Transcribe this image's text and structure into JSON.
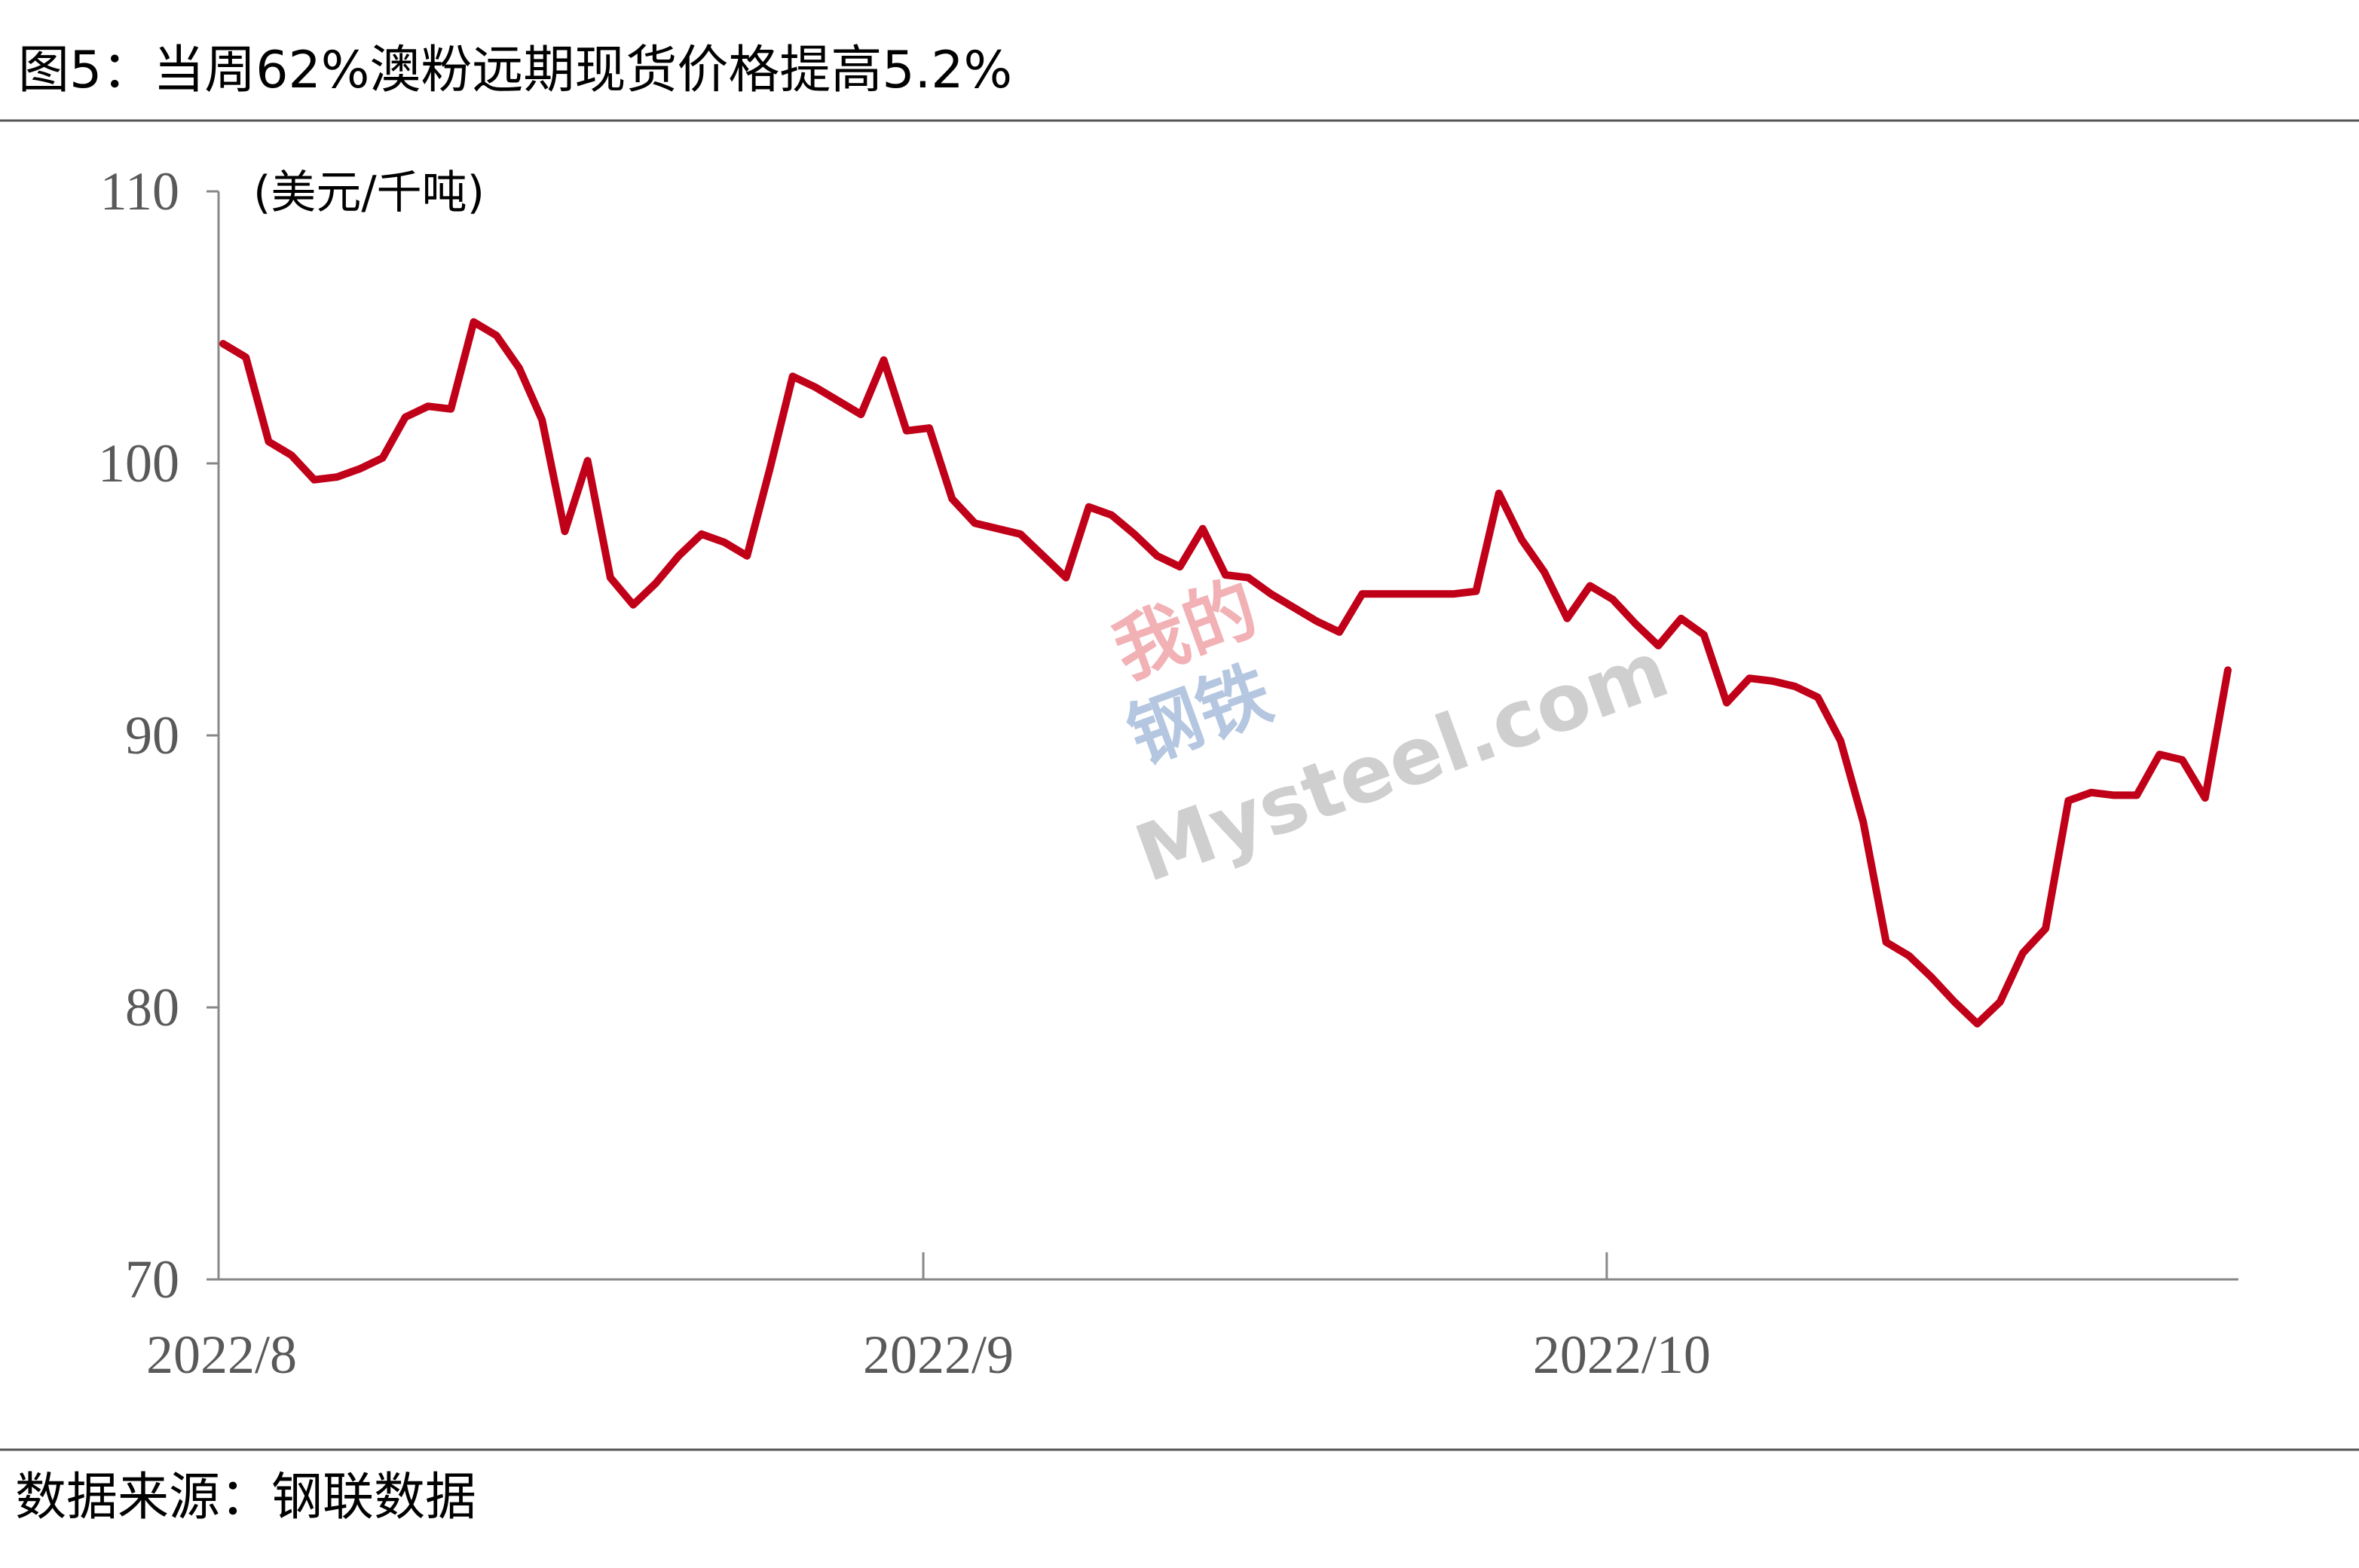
{
  "chart_data": {
    "type": "line",
    "title": "图5：当周62%澳粉远期现货价格提高5.2%",
    "y_label": "(美元/千吨)",
    "source": "数据来源：钢联数据",
    "watermark": [
      "我的",
      "钢铁",
      "Mysteel.com"
    ],
    "categories": [
      "2022/8",
      null,
      null,
      null,
      null,
      null,
      null,
      null,
      null,
      null,
      null,
      null,
      null,
      null,
      null,
      null,
      null,
      null,
      null,
      null,
      null,
      null,
      null,
      null,
      null,
      null,
      null,
      null,
      null,
      null,
      null,
      "2022/9",
      null,
      null,
      null,
      null,
      null,
      null,
      null,
      null,
      null,
      null,
      null,
      null,
      null,
      null,
      null,
      null,
      null,
      null,
      null,
      null,
      null,
      null,
      null,
      null,
      null,
      null,
      null,
      null,
      null,
      "2022/10",
      null,
      null,
      null,
      null,
      null,
      null,
      null,
      null,
      null,
      null,
      null,
      null,
      null,
      null,
      null,
      null,
      null,
      null,
      null,
      null,
      null,
      null,
      null,
      null,
      null,
      null,
      null
    ],
    "series": [
      {
        "name": "62%澳粉远期现货价格",
        "color": "#c00018",
        "values": [
          104.4,
          103.9,
          100.8,
          100.3,
          99.4,
          99.5,
          99.8,
          100.2,
          101.7,
          102.1,
          102.0,
          105.2,
          104.7,
          103.5,
          101.6,
          97.5,
          100.1,
          95.8,
          94.8,
          95.6,
          96.6,
          97.4,
          97.1,
          96.6,
          99.8,
          103.2,
          102.8,
          102.3,
          101.8,
          103.8,
          101.2,
          101.3,
          98.7,
          97.8,
          97.6,
          97.4,
          96.6,
          95.8,
          98.4,
          98.1,
          97.4,
          96.6,
          96.2,
          97.6,
          95.9,
          95.8,
          95.2,
          94.7,
          94.2,
          93.8,
          95.2,
          95.2,
          95.2,
          95.2,
          95.2,
          95.3,
          98.9,
          97.2,
          96.0,
          94.3,
          95.5,
          95.0,
          94.1,
          93.3,
          94.3,
          93.7,
          91.2,
          92.1,
          92.0,
          91.8,
          91.4,
          89.8,
          86.8,
          82.4,
          81.9,
          81.1,
          80.2,
          79.4,
          80.2,
          82.0,
          82.9,
          87.6,
          87.9,
          87.8,
          87.8,
          89.3,
          89.1,
          87.7,
          92.4
        ]
      }
    ],
    "ylim": [
      70,
      110
    ],
    "yticks": [
      70,
      80,
      90,
      100,
      110
    ],
    "grid": false
  }
}
